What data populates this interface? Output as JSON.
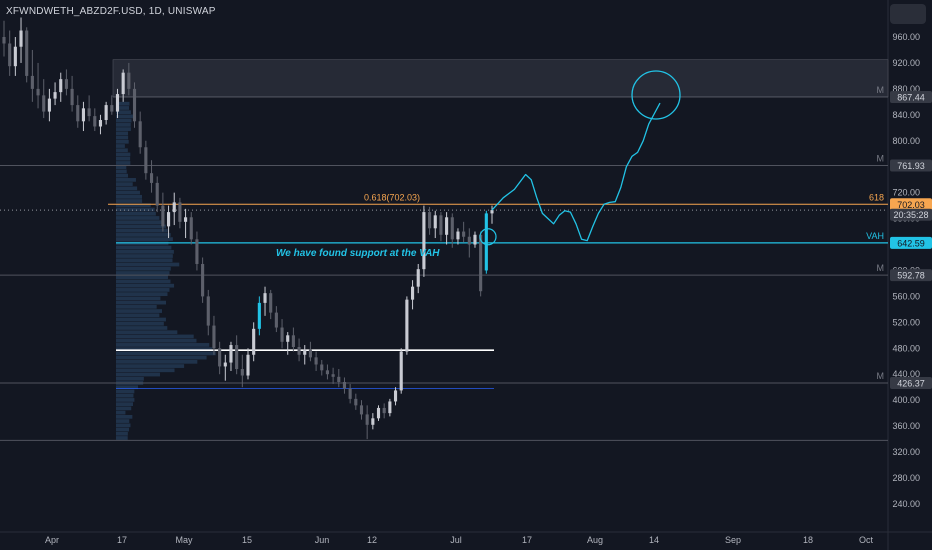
{
  "header": {
    "symbol": "XFWNDWETH_ABZD2F.USD, 1D, UNISWAP"
  },
  "annotation": "We have found support at the VAH",
  "chart_data": {
    "type": "candlestick",
    "y_ticks": [
      960,
      920,
      880,
      840,
      800,
      760,
      720,
      680,
      640,
      600,
      560,
      520,
      480,
      440,
      400,
      360,
      320,
      280,
      240
    ],
    "y_tick_labels": [
      "960.00",
      "920.00",
      "880.00",
      "840.00",
      "800.00",
      "760.00",
      "720.00",
      "680.00",
      "640.00",
      "600.00",
      "560.00",
      "520.00",
      "480.00",
      "440.00",
      "400.00",
      "360.00",
      "320.00",
      "280.00",
      "240.00"
    ],
    "ylim": [
      215,
      980
    ],
    "x_labels": [
      "Apr",
      "17",
      "May",
      "15",
      "Jun",
      "12",
      "Jul",
      "17",
      "Aug",
      "14",
      "Sep",
      "18",
      "Oct"
    ],
    "price_tags": [
      {
        "label": "867.44",
        "value": 867.44,
        "color": "#363a45",
        "text_color": "#d1d4dc"
      },
      {
        "label": "761.93",
        "value": 761.93,
        "color": "#363a45",
        "text_color": "#d1d4dc"
      },
      {
        "label": "702.03",
        "value": 702.03,
        "color": "#f7a650",
        "text_color": "#131722"
      },
      {
        "label": "20:35:28",
        "value": 686,
        "color": "#363a45",
        "text_color": "#d1d4dc"
      },
      {
        "label": "642.59",
        "value": 642.59,
        "color": "#22c3e6",
        "text_color": "#131722"
      },
      {
        "label": "592.78",
        "value": 592.78,
        "color": "#363a45",
        "text_color": "#d1d4dc"
      },
      {
        "label": "426.37",
        "value": 426.37,
        "color": "#363a45",
        "text_color": "#d1d4dc"
      }
    ],
    "levels": [
      {
        "label": "M",
        "value": 867.44
      },
      {
        "label": "M",
        "value": 761.93
      },
      {
        "label": "618",
        "value": 702.03
      },
      {
        "label": "VAH",
        "value": 642.59
      },
      {
        "label": "M",
        "value": 592.78
      },
      {
        "label": "M",
        "value": 426.37
      }
    ],
    "fib_label": "0.618(702.03)",
    "fib_value": 702.03,
    "vah_value": 642.59,
    "poc_value": 477,
    "val_value": 418,
    "zone": {
      "low": 868,
      "high": 925
    },
    "last_price": 693,
    "colors": {
      "up": "#c9cbd3",
      "down": "#5d606b",
      "vah": "#22c3e6",
      "fib": "#f7a650",
      "projection": "#22c3e6",
      "profile": "#2b4a6e"
    },
    "candles": [
      [
        960,
        985,
        930,
        950
      ],
      [
        950,
        970,
        900,
        915
      ],
      [
        915,
        960,
        900,
        945
      ],
      [
        945,
        990,
        920,
        970
      ],
      [
        970,
        975,
        890,
        900
      ],
      [
        900,
        940,
        860,
        880
      ],
      [
        880,
        920,
        850,
        870
      ],
      [
        870,
        895,
        835,
        845
      ],
      [
        845,
        880,
        830,
        865
      ],
      [
        865,
        890,
        855,
        875
      ],
      [
        875,
        905,
        860,
        895
      ],
      [
        895,
        910,
        870,
        880
      ],
      [
        880,
        900,
        845,
        855
      ],
      [
        855,
        870,
        820,
        830
      ],
      [
        830,
        860,
        815,
        850
      ],
      [
        850,
        870,
        830,
        838
      ],
      [
        838,
        850,
        815,
        822
      ],
      [
        822,
        840,
        810,
        832
      ],
      [
        832,
        860,
        825,
        855
      ],
      [
        855,
        870,
        840,
        845
      ],
      [
        845,
        880,
        835,
        872
      ],
      [
        872,
        910,
        860,
        905
      ],
      [
        905,
        920,
        870,
        880
      ],
      [
        880,
        890,
        820,
        830
      ],
      [
        830,
        845,
        780,
        790
      ],
      [
        790,
        800,
        740,
        750
      ],
      [
        750,
        770,
        720,
        735
      ],
      [
        735,
        745,
        690,
        700
      ],
      [
        700,
        720,
        660,
        668
      ],
      [
        668,
        700,
        650,
        690
      ],
      [
        690,
        720,
        670,
        705
      ],
      [
        705,
        712,
        665,
        675
      ],
      [
        675,
        695,
        650,
        682
      ],
      [
        682,
        690,
        640,
        648
      ],
      [
        648,
        660,
        600,
        610
      ],
      [
        610,
        620,
        550,
        560
      ],
      [
        560,
        570,
        500,
        515
      ],
      [
        515,
        530,
        470,
        480
      ],
      [
        480,
        490,
        440,
        452
      ],
      [
        452,
        470,
        430,
        458
      ],
      [
        458,
        490,
        445,
        485
      ],
      [
        485,
        500,
        440,
        448
      ],
      [
        448,
        470,
        420,
        438
      ],
      [
        438,
        480,
        432,
        470
      ],
      [
        470,
        520,
        460,
        510
      ],
      [
        510,
        560,
        500,
        550
      ],
      [
        550,
        575,
        530,
        565
      ],
      [
        565,
        570,
        525,
        535
      ],
      [
        535,
        545,
        505,
        512
      ],
      [
        512,
        525,
        480,
        490
      ],
      [
        490,
        505,
        470,
        500
      ],
      [
        500,
        512,
        475,
        482
      ],
      [
        482,
        495,
        460,
        470
      ],
      [
        470,
        485,
        455,
        478
      ],
      [
        478,
        490,
        460,
        466
      ],
      [
        466,
        475,
        445,
        455
      ],
      [
        455,
        462,
        438,
        446
      ],
      [
        446,
        455,
        432,
        440
      ],
      [
        440,
        450,
        425,
        436
      ],
      [
        436,
        448,
        420,
        428
      ],
      [
        428,
        435,
        410,
        418
      ],
      [
        418,
        425,
        395,
        402
      ],
      [
        402,
        410,
        385,
        392
      ],
      [
        392,
        400,
        370,
        378
      ],
      [
        378,
        392,
        340,
        362
      ],
      [
        362,
        380,
        355,
        372
      ],
      [
        372,
        392,
        368,
        388
      ],
      [
        388,
        395,
        372,
        380
      ],
      [
        380,
        402,
        375,
        398
      ],
      [
        398,
        420,
        392,
        415
      ],
      [
        415,
        480,
        410,
        475
      ],
      [
        475,
        560,
        470,
        555
      ],
      [
        555,
        585,
        540,
        575
      ],
      [
        575,
        610,
        565,
        602
      ],
      [
        602,
        700,
        590,
        690
      ],
      [
        690,
        698,
        655,
        665
      ],
      [
        665,
        692,
        650,
        685
      ],
      [
        685,
        690,
        645,
        655
      ],
      [
        655,
        690,
        640,
        682
      ],
      [
        682,
        688,
        635,
        648
      ],
      [
        648,
        665,
        640,
        660
      ],
      [
        660,
        675,
        643,
        652
      ],
      [
        652,
        665,
        620,
        640
      ],
      [
        640,
        660,
        635,
        655
      ],
      [
        655,
        660,
        560,
        568
      ],
      [
        600,
        692,
        595,
        688
      ],
      [
        688,
        700,
        672,
        693
      ]
    ],
    "projection": [
      [
        0,
        0.01
      ],
      [
        2,
        712
      ],
      [
        4,
        725
      ],
      [
        6,
        748
      ],
      [
        7,
        740
      ],
      [
        8,
        712
      ],
      [
        9,
        688
      ],
      [
        10,
        680
      ],
      [
        11,
        672
      ],
      [
        12,
        685
      ],
      [
        13,
        692
      ],
      [
        14,
        690
      ],
      [
        15,
        672
      ],
      [
        16,
        648
      ],
      [
        17,
        646
      ],
      [
        18,
        668
      ],
      [
        19,
        688
      ],
      [
        20,
        702
      ],
      [
        21,
        705
      ],
      [
        22,
        706
      ],
      [
        23,
        728
      ],
      [
        24,
        760
      ],
      [
        25,
        776
      ],
      [
        26,
        782
      ],
      [
        27,
        800
      ],
      [
        28,
        826
      ],
      [
        29,
        842
      ],
      [
        30,
        858
      ]
    ]
  }
}
